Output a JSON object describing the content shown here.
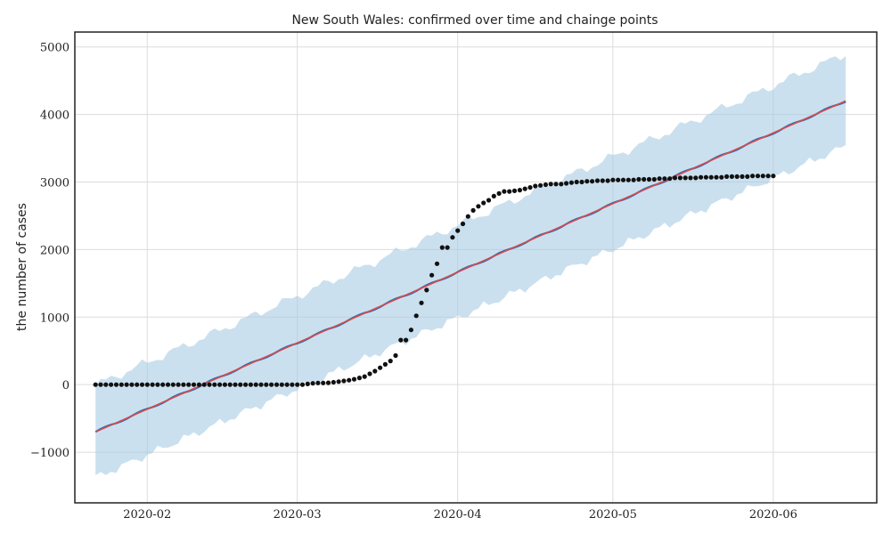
{
  "chart_data": {
    "type": "line",
    "title": "New South Wales: confirmed over time and chainge points",
    "xlabel": "",
    "ylabel": "the number of cases",
    "x_tick_labels": [
      "2020-02",
      "2020-03",
      "2020-04",
      "2020-05",
      "2020-06"
    ],
    "y_tick_labels": [
      "−1000",
      "0",
      "1000",
      "2000",
      "3000",
      "4000",
      "5000"
    ],
    "x_ticks": [
      "2020-02-01",
      "2020-03-01",
      "2020-04-01",
      "2020-05-01",
      "2020-06-01"
    ],
    "y_ticks": [
      -1000,
      0,
      1000,
      2000,
      3000,
      4000,
      5000
    ],
    "xlim": [
      "2020-01-18",
      "2020-06-21"
    ],
    "ylim": [
      -1750,
      5220
    ],
    "grid": true,
    "colors": {
      "observed": "#111111",
      "forecast": "#2e6db4",
      "trend": "#d94b4b",
      "uncertainty": "#a9cbe3"
    },
    "series": [
      {
        "type": "scatter",
        "x": [
          "2020-01-22",
          "2020-01-23",
          "2020-01-24",
          "2020-01-25",
          "2020-01-26",
          "2020-01-27",
          "2020-01-28",
          "2020-01-29",
          "2020-01-30",
          "2020-01-31",
          "2020-02-01",
          "2020-02-02",
          "2020-02-03",
          "2020-02-04",
          "2020-02-05",
          "2020-02-06",
          "2020-02-07",
          "2020-02-08",
          "2020-02-09",
          "2020-02-10",
          "2020-02-11",
          "2020-02-12",
          "2020-02-13",
          "2020-02-14",
          "2020-02-15",
          "2020-02-16",
          "2020-02-17",
          "2020-02-18",
          "2020-02-19",
          "2020-02-20",
          "2020-02-21",
          "2020-02-22",
          "2020-02-23",
          "2020-02-24",
          "2020-02-25",
          "2020-02-26",
          "2020-02-27",
          "2020-02-28",
          "2020-02-29",
          "2020-03-01",
          "2020-03-02",
          "2020-03-03",
          "2020-03-04",
          "2020-03-05",
          "2020-03-06",
          "2020-03-07",
          "2020-03-08",
          "2020-03-09",
          "2020-03-10",
          "2020-03-11",
          "2020-03-12",
          "2020-03-13",
          "2020-03-14",
          "2020-03-15",
          "2020-03-16",
          "2020-03-17",
          "2020-03-18",
          "2020-03-19",
          "2020-03-20",
          "2020-03-21",
          "2020-03-22",
          "2020-03-23",
          "2020-03-24",
          "2020-03-25",
          "2020-03-26",
          "2020-03-27",
          "2020-03-28",
          "2020-03-29",
          "2020-03-30",
          "2020-03-31",
          "2020-04-01",
          "2020-04-02",
          "2020-04-03",
          "2020-04-04",
          "2020-04-05",
          "2020-04-06",
          "2020-04-07",
          "2020-04-08",
          "2020-04-09",
          "2020-04-10",
          "2020-04-11",
          "2020-04-12",
          "2020-04-13",
          "2020-04-14",
          "2020-04-15",
          "2020-04-16",
          "2020-04-17",
          "2020-04-18",
          "2020-04-19",
          "2020-04-20",
          "2020-04-21",
          "2020-04-22",
          "2020-04-23",
          "2020-04-24",
          "2020-04-25",
          "2020-04-26",
          "2020-04-27",
          "2020-04-28",
          "2020-04-29",
          "2020-04-30",
          "2020-05-01",
          "2020-05-02",
          "2020-05-03",
          "2020-05-04",
          "2020-05-05",
          "2020-05-06",
          "2020-05-07",
          "2020-05-08",
          "2020-05-09",
          "2020-05-10",
          "2020-05-11",
          "2020-05-12",
          "2020-05-13",
          "2020-05-14",
          "2020-05-15",
          "2020-05-16",
          "2020-05-17",
          "2020-05-18",
          "2020-05-19",
          "2020-05-20",
          "2020-05-21",
          "2020-05-22",
          "2020-05-23",
          "2020-05-24",
          "2020-05-25",
          "2020-05-26",
          "2020-05-27",
          "2020-05-28",
          "2020-05-29",
          "2020-05-30",
          "2020-05-31",
          "2020-06-01"
        ],
        "y": [
          0,
          0,
          0,
          0,
          0,
          0,
          0,
          0,
          0,
          0,
          0,
          0,
          0,
          0,
          0,
          0,
          0,
          0,
          0,
          0,
          0,
          0,
          0,
          0,
          0,
          0,
          0,
          0,
          0,
          0,
          0,
          0,
          0,
          0,
          0,
          0,
          0,
          0,
          0,
          0,
          0,
          10,
          20,
          25,
          25,
          28,
          35,
          45,
          55,
          65,
          80,
          100,
          120,
          160,
          200,
          250,
          300,
          350,
          430,
          660,
          660,
          810,
          1020,
          1210,
          1400,
          1620,
          1790,
          2030,
          2030,
          2180,
          2280,
          2380,
          2490,
          2580,
          2640,
          2690,
          2730,
          2790,
          2830,
          2860,
          2860,
          2870,
          2880,
          2900,
          2920,
          2940,
          2950,
          2960,
          2970,
          2970,
          2970,
          2980,
          2990,
          3000,
          3000,
          3010,
          3010,
          3020,
          3020,
          3020,
          3030,
          3030,
          3030,
          3030,
          3030,
          3040,
          3040,
          3040,
          3040,
          3050,
          3050,
          3050,
          3060,
          3060,
          3060,
          3060,
          3060,
          3070,
          3070,
          3070,
          3070,
          3070,
          3080,
          3080,
          3080,
          3080,
          3080,
          3090,
          3090,
          3090,
          3090,
          3090
        ]
      },
      {
        "type": "line",
        "x_start": "2020-01-22",
        "x_end": "2020-06-15",
        "y_start": -700,
        "y_end": 4200,
        "band_low_start": -1380,
        "band_low_end": 3530,
        "band_high_start": -10,
        "band_high_end": 4900
      }
    ]
  }
}
